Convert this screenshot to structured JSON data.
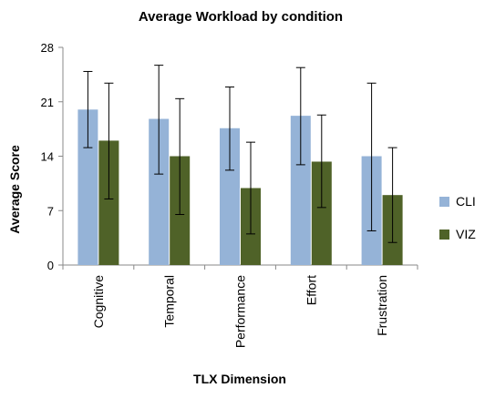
{
  "chart_data": {
    "type": "bar",
    "title": "Average Workload by condition",
    "xlabel": "TLX Dimension",
    "ylabel": "Average Score",
    "ylim": [
      0,
      28
    ],
    "yticks": [
      0,
      7,
      14,
      21,
      28
    ],
    "categories": [
      "Cognitive",
      "Temporal",
      "Performance",
      "Effort",
      "Frustration"
    ],
    "series": [
      {
        "name": "CLI",
        "color": "#95b3d7",
        "values": [
          20.0,
          18.8,
          17.6,
          19.2,
          14.0
        ],
        "error_low": [
          15.1,
          11.7,
          12.2,
          12.9,
          4.4
        ],
        "error_high": [
          24.9,
          25.7,
          22.9,
          25.4,
          23.4
        ]
      },
      {
        "name": "VIZ",
        "color": "#4f6228",
        "values": [
          16.0,
          14.0,
          9.9,
          13.3,
          9.0
        ],
        "error_low": [
          8.5,
          6.5,
          4.0,
          7.4,
          2.9
        ],
        "error_high": [
          23.4,
          21.4,
          15.8,
          19.3,
          15.1
        ]
      }
    ],
    "legend_position": "right",
    "grid": false
  }
}
